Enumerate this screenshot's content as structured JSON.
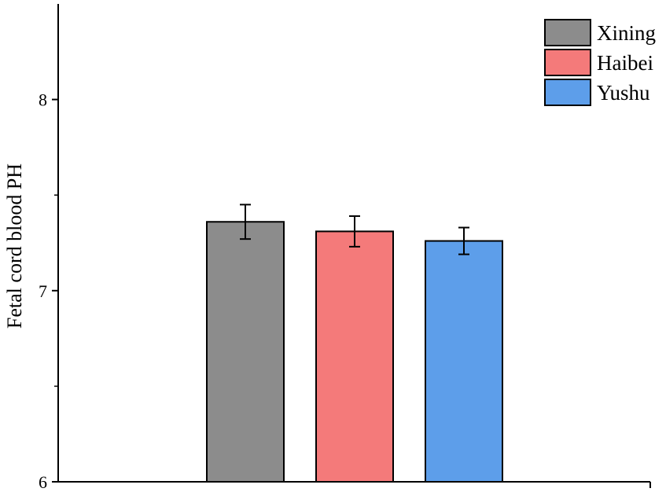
{
  "chart_data": {
    "type": "bar",
    "title": "",
    "xlabel": "",
    "ylabel": "Fetal cord blood PH",
    "ylim": [
      6,
      8.5
    ],
    "yticks": [
      6,
      7,
      8
    ],
    "ytick_labels": [
      "6",
      "7",
      "8"
    ],
    "grid": false,
    "legend_position": "top-right",
    "series": [
      {
        "name": "Xining",
        "value": 7.36,
        "error": 0.09,
        "color": "#8c8c8c"
      },
      {
        "name": "Haibei",
        "value": 7.31,
        "error": 0.08,
        "color": "#f47a7a"
      },
      {
        "name": "Yushu",
        "value": 7.26,
        "error": 0.07,
        "color": "#5d9eea"
      }
    ]
  }
}
